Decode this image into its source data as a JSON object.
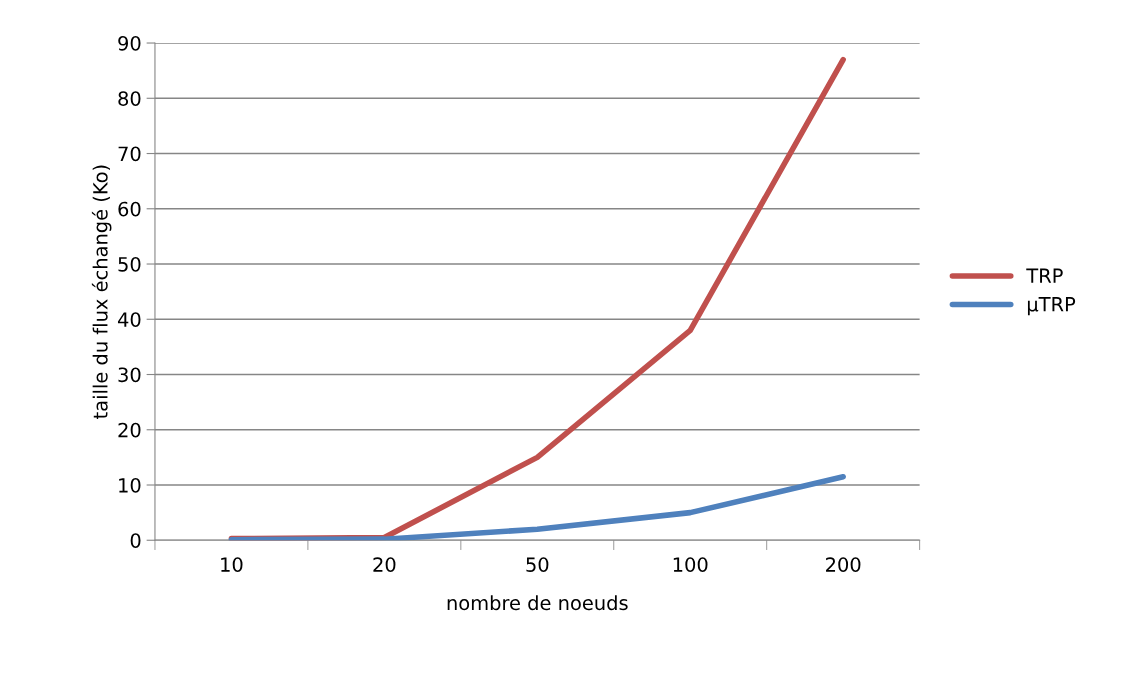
{
  "chart_data": {
    "type": "line",
    "xlabel": "nombre de noeuds",
    "ylabel": "taille du flux échangé (Ko)",
    "categories": [
      "10",
      "20",
      "50",
      "100",
      "200"
    ],
    "series": [
      {
        "name": "TRP",
        "color": "#c0504d",
        "values": [
          0.3,
          0.5,
          15,
          38,
          87
        ]
      },
      {
        "name": "µTRP",
        "color": "#4f81bd",
        "values": [
          0.1,
          0.2,
          2,
          5,
          11.5
        ]
      }
    ],
    "ylim": [
      0,
      90
    ],
    "yticks": [
      0,
      10,
      20,
      30,
      40,
      50,
      60,
      70,
      80,
      90
    ],
    "grid": "y",
    "legend": "right",
    "marker": "none",
    "line_style": "solid"
  }
}
